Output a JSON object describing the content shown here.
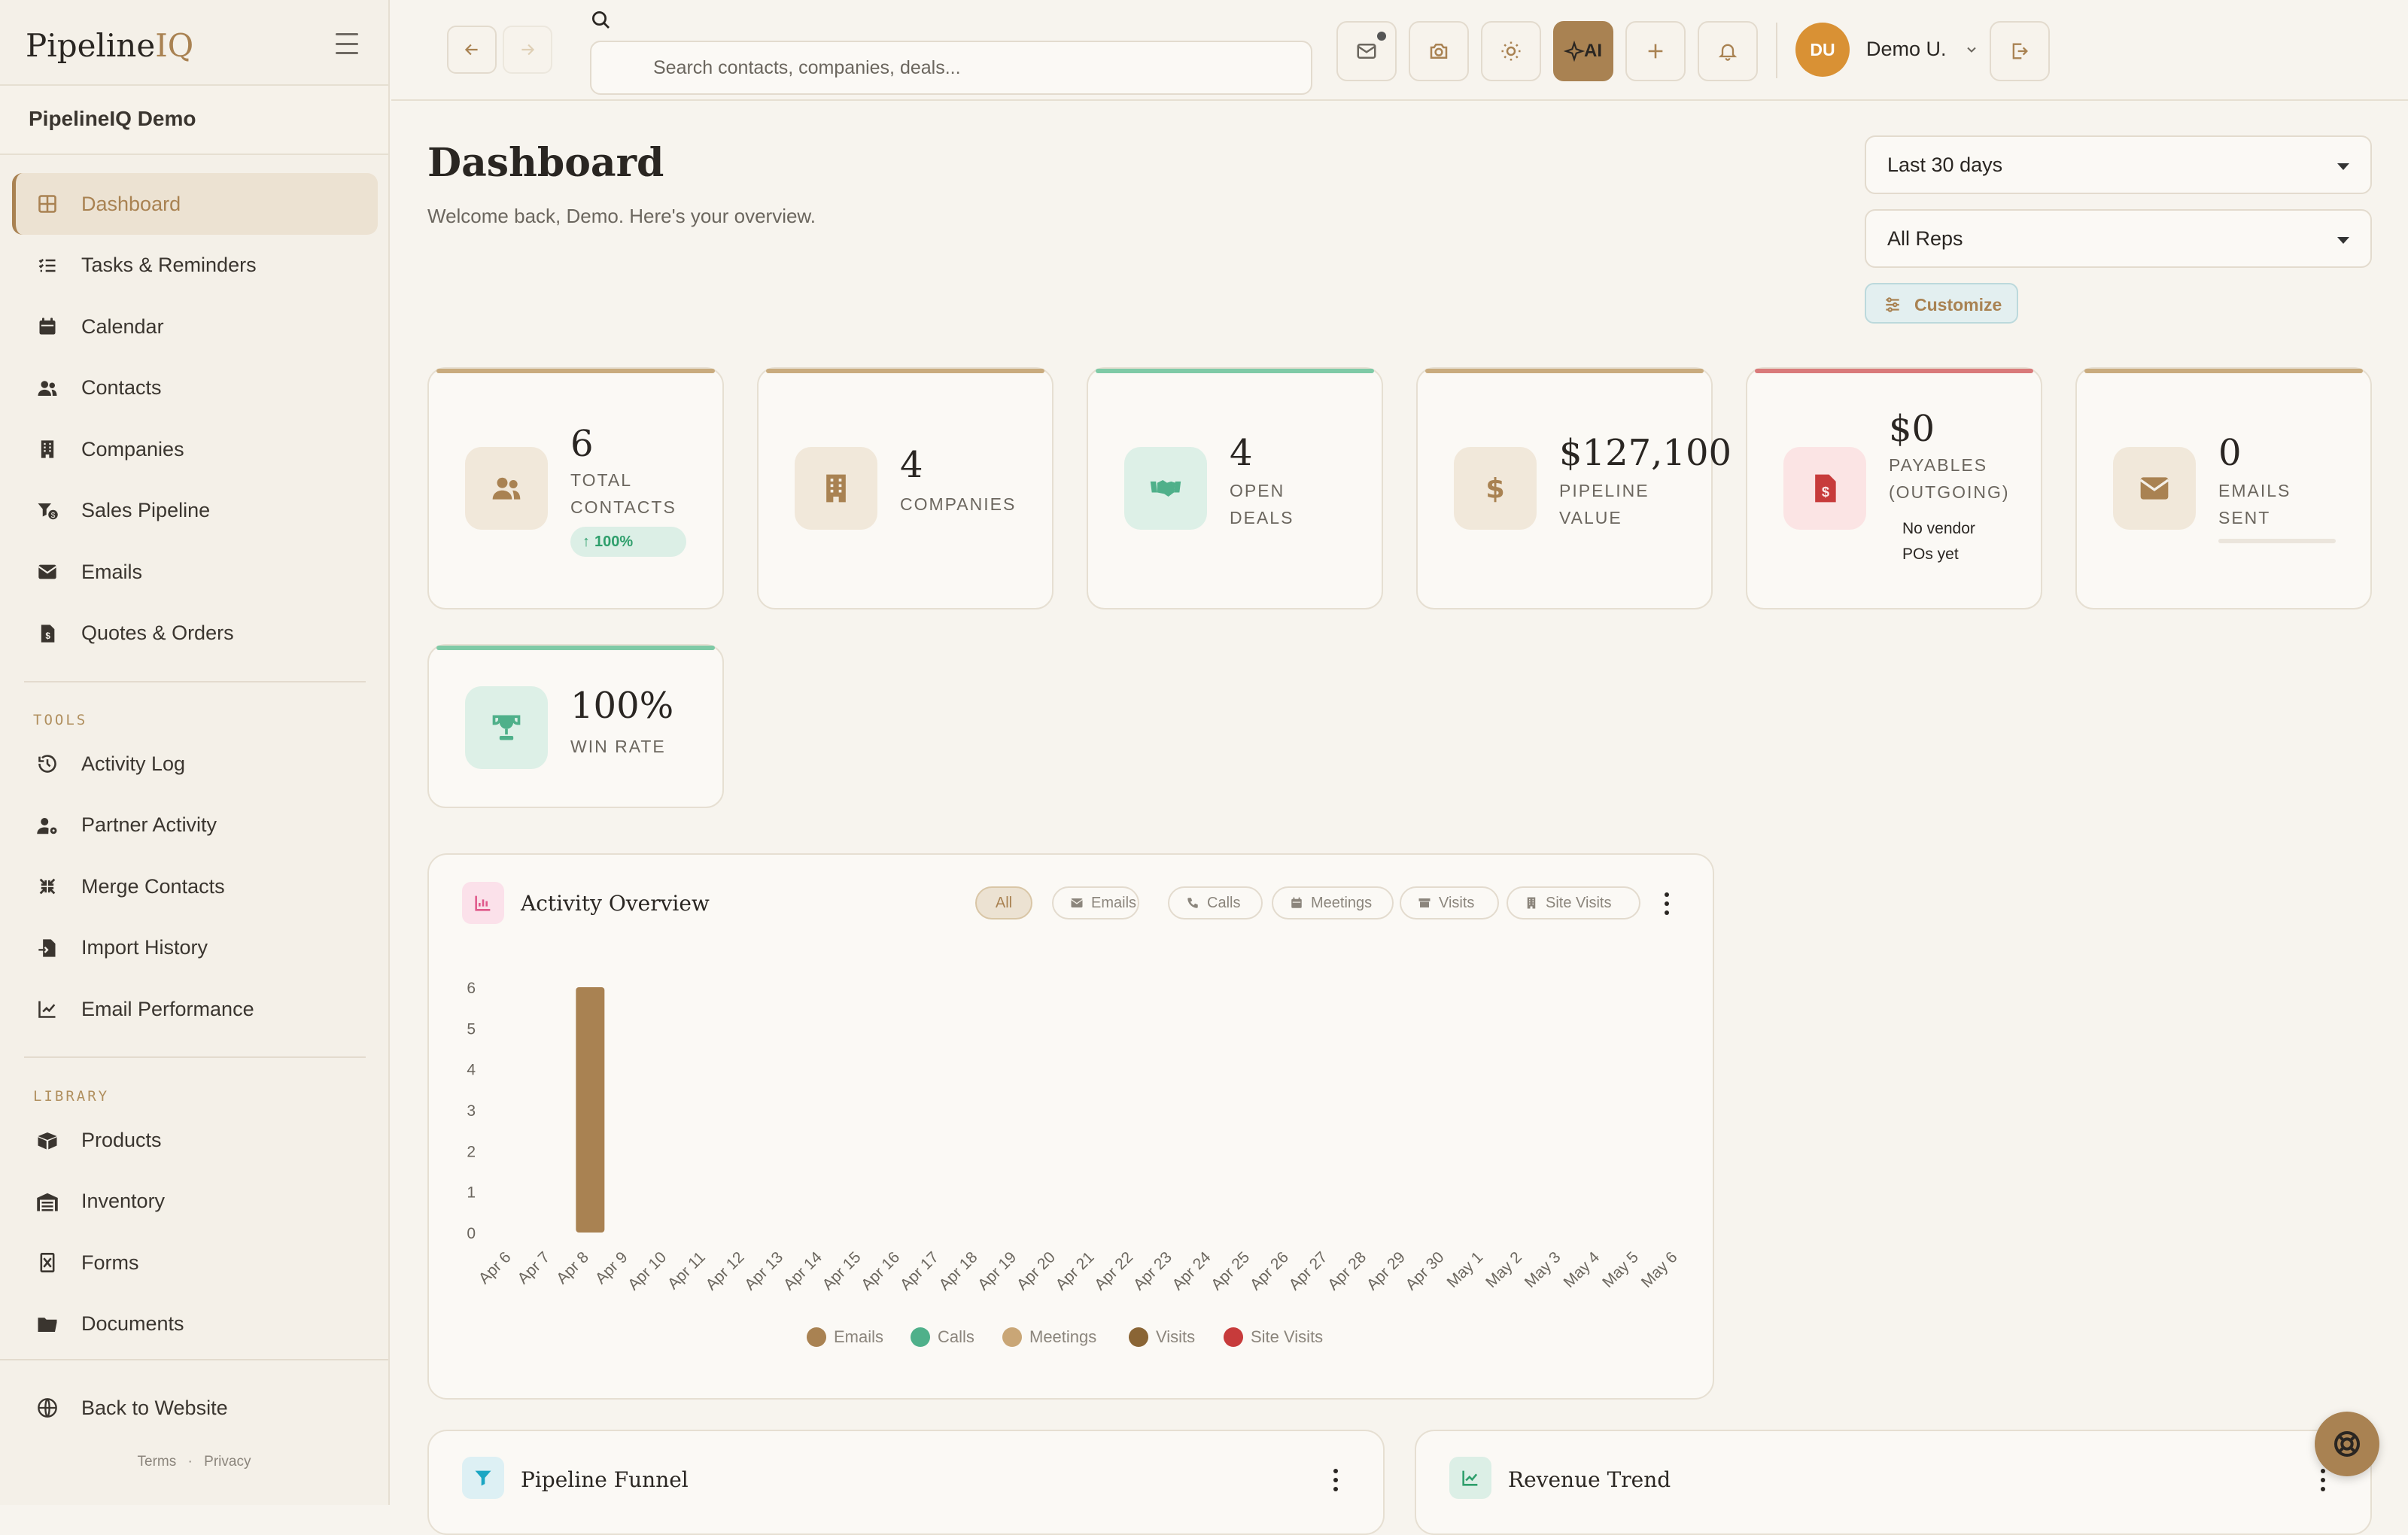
{
  "app": {
    "logo_main": "Pipeline",
    "logo_accent": "IQ",
    "workspace": "PipelineIQ Demo"
  },
  "sidebar": {
    "main_items": [
      {
        "label": "Dashboard",
        "icon": "grid-icon",
        "active": true
      },
      {
        "label": "Tasks & Reminders",
        "icon": "checklist-icon"
      },
      {
        "label": "Calendar",
        "icon": "calendar-icon"
      },
      {
        "label": "Contacts",
        "icon": "users-icon"
      },
      {
        "label": "Companies",
        "icon": "building-icon"
      },
      {
        "label": "Sales Pipeline",
        "icon": "funnel-icon"
      },
      {
        "label": "Emails",
        "icon": "envelope-icon"
      },
      {
        "label": "Quotes & Orders",
        "icon": "invoice-icon"
      }
    ],
    "tools_label": "TOOLS",
    "tools_items": [
      {
        "label": "Activity Log",
        "icon": "history-icon"
      },
      {
        "label": "Partner Activity",
        "icon": "user-gear-icon"
      },
      {
        "label": "Merge Contacts",
        "icon": "compress-icon"
      },
      {
        "label": "Import History",
        "icon": "file-import-icon"
      },
      {
        "label": "Email Performance",
        "icon": "line-chart-icon"
      }
    ],
    "library_label": "LIBRARY",
    "library_items": [
      {
        "label": "Products",
        "icon": "box-icon"
      },
      {
        "label": "Inventory",
        "icon": "warehouse-icon"
      },
      {
        "label": "Forms",
        "icon": "form-icon"
      },
      {
        "label": "Documents",
        "icon": "folder-icon"
      }
    ],
    "back_label": "Back to Website",
    "terms": "Terms",
    "privacy": "Privacy",
    "sep": "·"
  },
  "topbar": {
    "search_placeholder": "Search contacts, companies, deals...",
    "ai_label": "AI",
    "user_initials": "DU",
    "user_name": "Demo U."
  },
  "header": {
    "title": "Dashboard",
    "subtitle": "Welcome back, Demo. Here's your overview.",
    "range_select": "Last 30 days",
    "rep_select": "All Reps",
    "customize_label": "Customize"
  },
  "stats": [
    {
      "value": "6",
      "label_lines": [
        "TOTAL",
        "CONTACTS"
      ],
      "trend": "100%",
      "accent": "#c9ab7e",
      "icon": "users-icon"
    },
    {
      "value": "4",
      "label_lines": [
        "COMPANIES"
      ],
      "accent": "#c9ab7e",
      "icon": "building-icon"
    },
    {
      "value": "4",
      "label_lines": [
        "OPEN",
        "DEALS"
      ],
      "accent": "#7fcaa6",
      "icon": "handshake-icon"
    },
    {
      "value": "$127,100",
      "label_lines": [
        "PIPELINE",
        "VALUE"
      ],
      "accent": "#c9ab7e",
      "icon": "dollar-icon"
    },
    {
      "value": "$0",
      "label_lines": [
        "PAYABLES",
        "(OUTGOING)"
      ],
      "note_lines": [
        "No vendor",
        "POs yet"
      ],
      "accent": "#d97a7a",
      "icon": "invoice-dollar-icon"
    },
    {
      "value": "0",
      "label_lines": [
        "EMAILS",
        "SENT"
      ],
      "accent": "#c9ab7e",
      "icon": "envelope-icon"
    },
    {
      "value": "100%",
      "label_lines": [
        "WIN RATE"
      ],
      "accent": "#7fcaa6",
      "icon": "trophy-icon"
    }
  ],
  "activity": {
    "title": "Activity Overview",
    "filters": [
      {
        "label": "All",
        "active": true,
        "icon": ""
      },
      {
        "label": "Emails",
        "icon": "envelope-icon"
      },
      {
        "label": "Calls",
        "icon": "phone-icon"
      },
      {
        "label": "Meetings",
        "icon": "calendar-icon"
      },
      {
        "label": "Visits",
        "icon": "store-icon"
      },
      {
        "label": "Site Visits",
        "icon": "building-icon"
      }
    ]
  },
  "chart_data": {
    "type": "bar",
    "categories": [
      "Apr 6",
      "Apr 7",
      "Apr 8",
      "Apr 9",
      "Apr 10",
      "Apr 11",
      "Apr 12",
      "Apr 13",
      "Apr 14",
      "Apr 15",
      "Apr 16",
      "Apr 17",
      "Apr 18",
      "Apr 19",
      "Apr 20",
      "Apr 21",
      "Apr 22",
      "Apr 23",
      "Apr 24",
      "Apr 25",
      "Apr 26",
      "Apr 27",
      "Apr 28",
      "Apr 29",
      "Apr 30",
      "May 1",
      "May 2",
      "May 3",
      "May 4",
      "May 5",
      "May 6"
    ],
    "series": [
      {
        "name": "Emails",
        "color": "#a98252",
        "values": [
          0,
          0,
          6,
          0,
          0,
          0,
          0,
          0,
          0,
          0,
          0,
          0,
          0,
          0,
          0,
          0,
          0,
          0,
          0,
          0,
          0,
          0,
          0,
          0,
          0,
          0,
          0,
          0,
          0,
          0,
          0
        ]
      },
      {
        "name": "Calls",
        "color": "#4fb08a",
        "values": [
          0,
          0,
          0,
          0,
          0,
          0,
          0,
          0,
          0,
          0,
          0,
          0,
          0,
          0,
          0,
          0,
          0,
          0,
          0,
          0,
          0,
          0,
          0,
          0,
          0,
          0,
          0,
          0,
          0,
          0,
          0
        ]
      },
      {
        "name": "Meetings",
        "color": "#c9a676",
        "values": [
          0,
          0,
          0,
          0,
          0,
          0,
          0,
          0,
          0,
          0,
          0,
          0,
          0,
          0,
          0,
          0,
          0,
          0,
          0,
          0,
          0,
          0,
          0,
          0,
          0,
          0,
          0,
          0,
          0,
          0,
          0
        ]
      },
      {
        "name": "Visits",
        "color": "#8a6535",
        "values": [
          0,
          0,
          0,
          0,
          0,
          0,
          0,
          0,
          0,
          0,
          0,
          0,
          0,
          0,
          0,
          0,
          0,
          0,
          0,
          0,
          0,
          0,
          0,
          0,
          0,
          0,
          0,
          0,
          0,
          0,
          0
        ]
      },
      {
        "name": "Site Visits",
        "color": "#c73b3b",
        "values": [
          0,
          0,
          0,
          0,
          0,
          0,
          0,
          0,
          0,
          0,
          0,
          0,
          0,
          0,
          0,
          0,
          0,
          0,
          0,
          0,
          0,
          0,
          0,
          0,
          0,
          0,
          0,
          0,
          0,
          0,
          0
        ]
      }
    ],
    "yticks": [
      "0",
      "1",
      "2",
      "3",
      "4",
      "5",
      "6"
    ],
    "ylim": [
      0,
      6
    ],
    "stacked": true,
    "grid": false,
    "legend": "bottom"
  },
  "bottom_cards": {
    "funnel_title": "Pipeline Funnel",
    "revenue_title": "Revenue Trend"
  }
}
